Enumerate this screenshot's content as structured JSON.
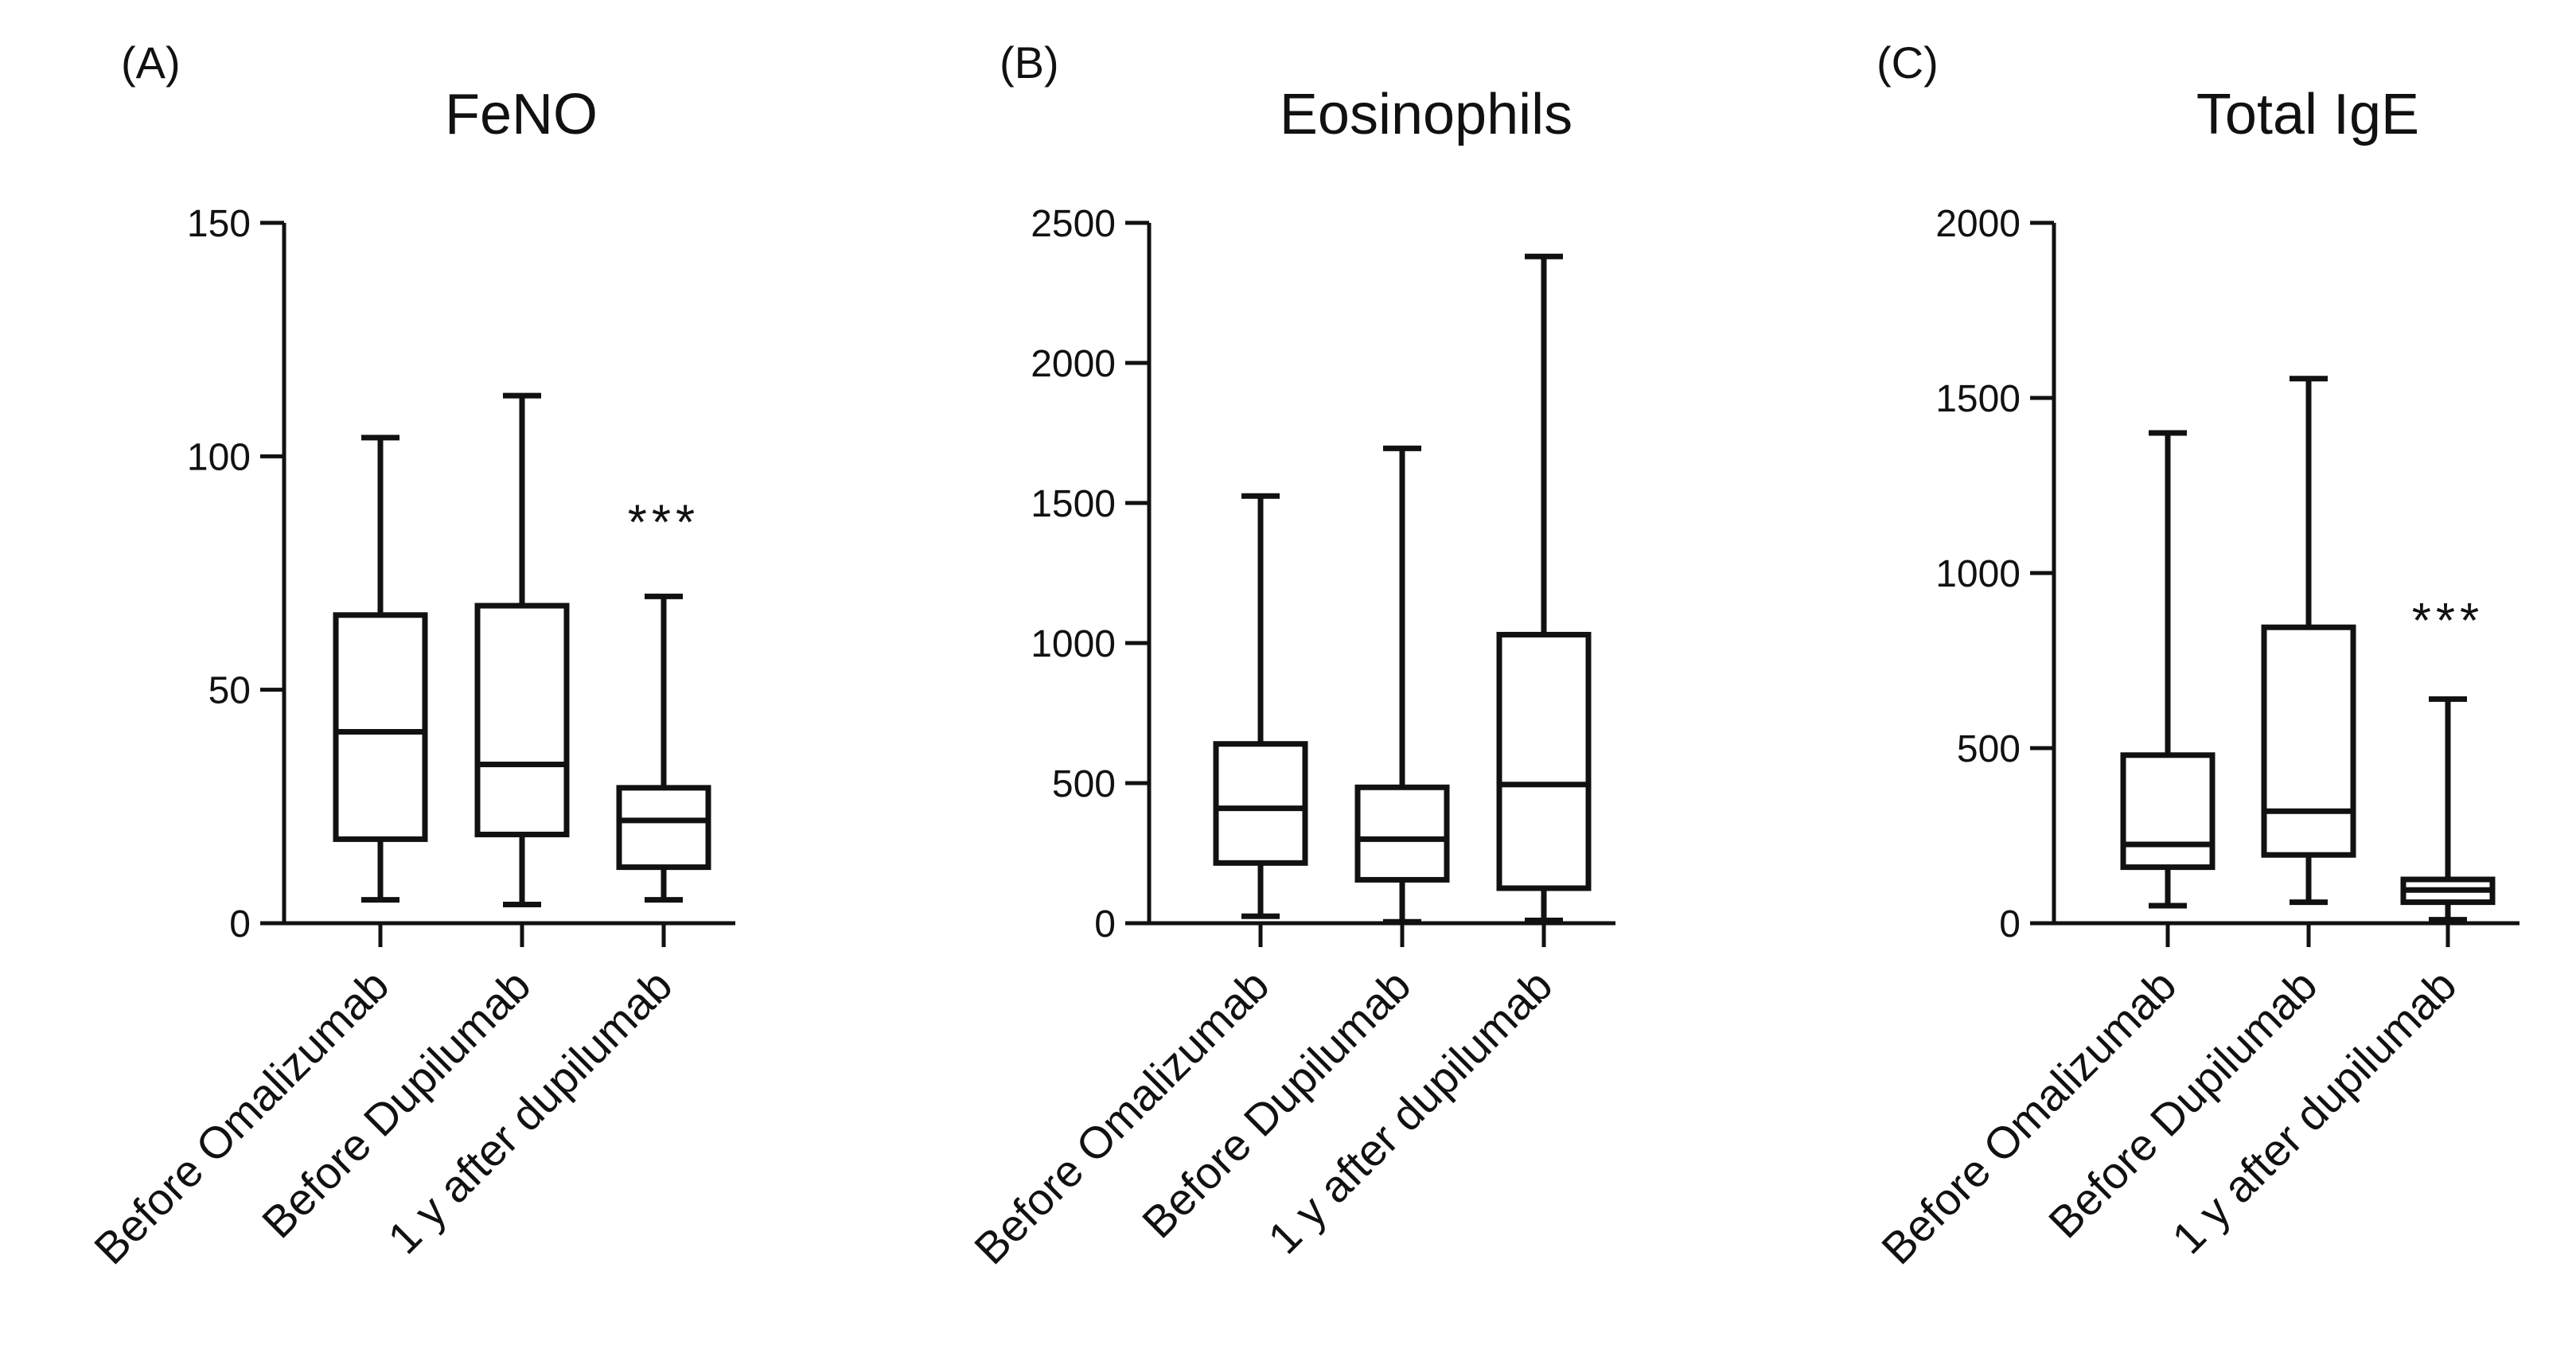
{
  "style": {
    "ink": "#111111",
    "background": "#ffffff"
  },
  "chart_data": [
    {
      "type": "box",
      "panel": "(A)",
      "title": "FeNO",
      "xlabel": "",
      "ylabel": "",
      "ylim": [
        0,
        150
      ],
      "yticks": [
        0,
        50,
        100,
        150
      ],
      "categories": [
        "Before Omalizumab",
        "Before Dupilumab",
        "1 y after dupilumab"
      ],
      "boxes": [
        {
          "min": 5,
          "q1": 18,
          "median": 41,
          "q3": 66,
          "max": 104
        },
        {
          "min": 4,
          "q1": 19,
          "median": 34,
          "q3": 68,
          "max": 113
        },
        {
          "min": 5,
          "q1": 12,
          "median": 22,
          "q3": 29,
          "max": 70
        }
      ],
      "annotations": [
        {
          "category_index": 2,
          "text": "***",
          "y": 87
        }
      ]
    },
    {
      "type": "box",
      "panel": "(B)",
      "title": "Eosinophils",
      "xlabel": "",
      "ylabel": "",
      "ylim": [
        0,
        2500
      ],
      "yticks": [
        0,
        500,
        1000,
        1500,
        2000,
        2500
      ],
      "categories": [
        "Before Omalizumab",
        "Before Dupilumab",
        "1 y after dupilumab"
      ],
      "boxes": [
        {
          "min": 25,
          "q1": 215,
          "median": 410,
          "q3": 640,
          "max": 1525
        },
        {
          "min": 5,
          "q1": 155,
          "median": 300,
          "q3": 485,
          "max": 1695
        },
        {
          "min": 10,
          "q1": 125,
          "median": 495,
          "q3": 1030,
          "max": 2380
        }
      ],
      "annotations": []
    },
    {
      "type": "box",
      "panel": "(C)",
      "title": "Total IgE",
      "xlabel": "",
      "ylabel": "",
      "ylim": [
        0,
        2000
      ],
      "yticks": [
        0,
        500,
        1000,
        1500,
        2000
      ],
      "categories": [
        "Before Omalizumab",
        "Before Dupilumab",
        "1 y after dupilumab"
      ],
      "boxes": [
        {
          "min": 50,
          "q1": 160,
          "median": 225,
          "q3": 480,
          "max": 1400
        },
        {
          "min": 60,
          "q1": 195,
          "median": 320,
          "q3": 845,
          "max": 1555
        },
        {
          "min": 10,
          "q1": 60,
          "median": 95,
          "q3": 125,
          "max": 640
        }
      ],
      "annotations": [
        {
          "category_index": 2,
          "text": "***",
          "y": 880
        }
      ]
    }
  ]
}
